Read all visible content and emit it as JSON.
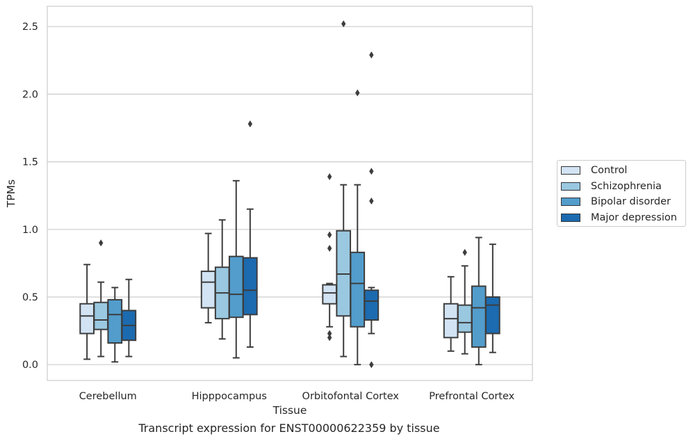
{
  "chart_data": {
    "type": "box",
    "caption": "Transcript expression for ENST00000622359 by tissue",
    "xlabel": "Tissue",
    "ylabel": "TPMs",
    "ylim": [
      -0.12,
      2.65
    ],
    "yticks": [
      0.0,
      0.5,
      1.0,
      1.5,
      2.0,
      2.5
    ],
    "ytick_labels": [
      "0.0",
      "0.5",
      "1.0",
      "1.5",
      "2.0",
      "2.5"
    ],
    "grid": true,
    "legend_position": "right",
    "categories": [
      "Cerebellum",
      "Hipppocampus",
      "Orbitofontal Cortex",
      "Prefrontal Cortex"
    ],
    "series": [
      {
        "name": "Control",
        "color": "#d2e3f3",
        "boxes": [
          {
            "whisker_low": 0.04,
            "q1": 0.23,
            "median": 0.36,
            "q3": 0.45,
            "whisker_high": 0.74,
            "outliers": []
          },
          {
            "whisker_low": 0.31,
            "q1": 0.42,
            "median": 0.61,
            "q3": 0.69,
            "whisker_high": 0.97,
            "outliers": []
          },
          {
            "whisker_low": 0.28,
            "q1": 0.45,
            "median": 0.53,
            "q3": 0.59,
            "whisker_high": 0.6,
            "outliers": [
              1.39,
              0.96,
              0.86,
              0.23,
              0.2
            ]
          },
          {
            "whisker_low": 0.1,
            "q1": 0.2,
            "median": 0.34,
            "q3": 0.45,
            "whisker_high": 0.65,
            "outliers": []
          }
        ]
      },
      {
        "name": "Schizophrenia",
        "color": "#9ac8e0",
        "boxes": [
          {
            "whisker_low": 0.06,
            "q1": 0.26,
            "median": 0.33,
            "q3": 0.46,
            "whisker_high": 0.61,
            "outliers": [
              0.9
            ]
          },
          {
            "whisker_low": 0.19,
            "q1": 0.34,
            "median": 0.53,
            "q3": 0.72,
            "whisker_high": 1.07,
            "outliers": []
          },
          {
            "whisker_low": 0.06,
            "q1": 0.36,
            "median": 0.67,
            "q3": 0.99,
            "whisker_high": 1.33,
            "outliers": [
              2.52
            ]
          },
          {
            "whisker_low": 0.08,
            "q1": 0.24,
            "median": 0.31,
            "q3": 0.44,
            "whisker_high": 0.73,
            "outliers": [
              0.83
            ]
          }
        ]
      },
      {
        "name": "Bipolar disorder",
        "color": "#529dcc",
        "boxes": [
          {
            "whisker_low": 0.02,
            "q1": 0.16,
            "median": 0.37,
            "q3": 0.48,
            "whisker_high": 0.57,
            "outliers": []
          },
          {
            "whisker_low": 0.05,
            "q1": 0.35,
            "median": 0.52,
            "q3": 0.8,
            "whisker_high": 1.36,
            "outliers": []
          },
          {
            "whisker_low": 0.0,
            "q1": 0.28,
            "median": 0.6,
            "q3": 0.83,
            "whisker_high": 1.33,
            "outliers": [
              2.01
            ]
          },
          {
            "whisker_low": 0.0,
            "q1": 0.13,
            "median": 0.42,
            "q3": 0.58,
            "whisker_high": 0.94,
            "outliers": []
          }
        ]
      },
      {
        "name": "Major depression",
        "color": "#1c6aaf",
        "boxes": [
          {
            "whisker_low": 0.06,
            "q1": 0.18,
            "median": 0.29,
            "q3": 0.4,
            "whisker_high": 0.63,
            "outliers": []
          },
          {
            "whisker_low": 0.13,
            "q1": 0.37,
            "median": 0.55,
            "q3": 0.79,
            "whisker_high": 1.15,
            "outliers": [
              1.78
            ]
          },
          {
            "whisker_low": 0.23,
            "q1": 0.33,
            "median": 0.47,
            "q3": 0.55,
            "whisker_high": 0.57,
            "outliers": [
              2.29,
              1.43,
              1.21,
              0.0
            ]
          },
          {
            "whisker_low": 0.09,
            "q1": 0.23,
            "median": 0.44,
            "q3": 0.5,
            "whisker_high": 0.89,
            "outliers": []
          }
        ]
      }
    ]
  }
}
